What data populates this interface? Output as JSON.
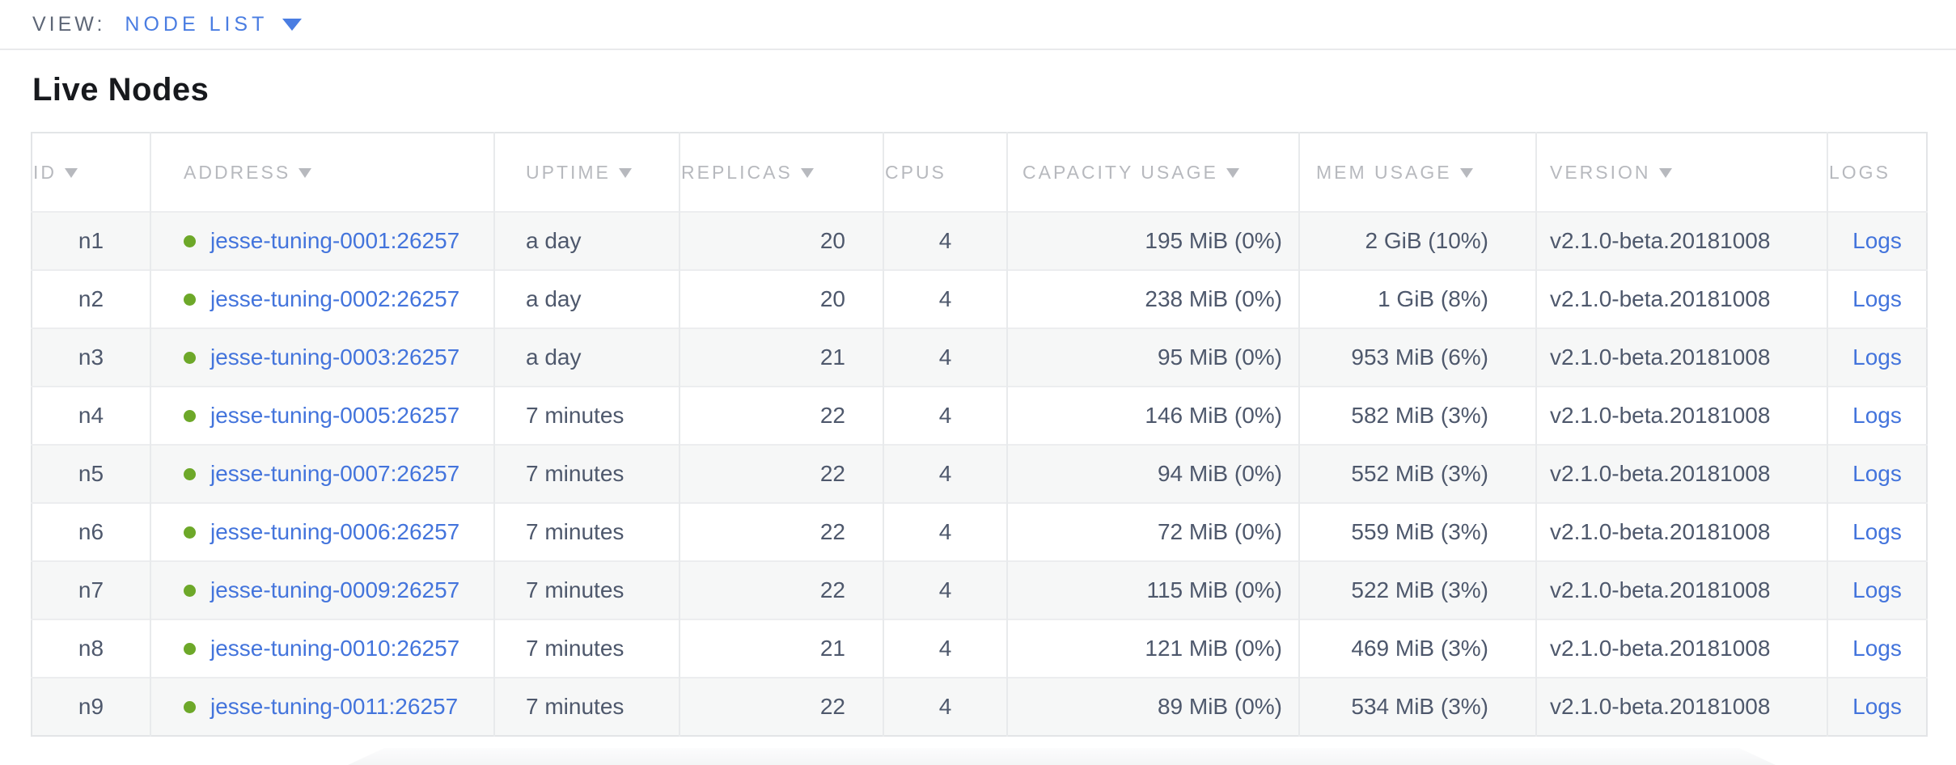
{
  "view_bar": {
    "label": "VIEW:",
    "selected": "NODE LIST"
  },
  "page": {
    "title": "Live Nodes"
  },
  "table": {
    "columns": [
      {
        "label": "ID",
        "sortable": true
      },
      {
        "label": "ADDRESS",
        "sortable": true
      },
      {
        "label": "UPTIME",
        "sortable": true
      },
      {
        "label": "REPLICAS",
        "sortable": true
      },
      {
        "label": "CPUS",
        "sortable": false
      },
      {
        "label": "CAPACITY USAGE",
        "sortable": true
      },
      {
        "label": "MEM USAGE",
        "sortable": true
      },
      {
        "label": "VERSION",
        "sortable": true
      },
      {
        "label": "LOGS",
        "sortable": false
      }
    ],
    "rows": [
      {
        "id": "n1",
        "address": "jesse-tuning-0001:26257",
        "uptime": "a day",
        "replicas": "20",
        "cpus": "4",
        "capacity": "195 MiB (0%)",
        "mem": "2 GiB (10%)",
        "version": "v2.1.0-beta.20181008",
        "logs": "Logs"
      },
      {
        "id": "n2",
        "address": "jesse-tuning-0002:26257",
        "uptime": "a day",
        "replicas": "20",
        "cpus": "4",
        "capacity": "238 MiB (0%)",
        "mem": "1 GiB (8%)",
        "version": "v2.1.0-beta.20181008",
        "logs": "Logs"
      },
      {
        "id": "n3",
        "address": "jesse-tuning-0003:26257",
        "uptime": "a day",
        "replicas": "21",
        "cpus": "4",
        "capacity": "95 MiB (0%)",
        "mem": "953 MiB (6%)",
        "version": "v2.1.0-beta.20181008",
        "logs": "Logs"
      },
      {
        "id": "n4",
        "address": "jesse-tuning-0005:26257",
        "uptime": "7 minutes",
        "replicas": "22",
        "cpus": "4",
        "capacity": "146 MiB (0%)",
        "mem": "582 MiB (3%)",
        "version": "v2.1.0-beta.20181008",
        "logs": "Logs"
      },
      {
        "id": "n5",
        "address": "jesse-tuning-0007:26257",
        "uptime": "7 minutes",
        "replicas": "22",
        "cpus": "4",
        "capacity": "94 MiB (0%)",
        "mem": "552 MiB (3%)",
        "version": "v2.1.0-beta.20181008",
        "logs": "Logs"
      },
      {
        "id": "n6",
        "address": "jesse-tuning-0006:26257",
        "uptime": "7 minutes",
        "replicas": "22",
        "cpus": "4",
        "capacity": "72 MiB (0%)",
        "mem": "559 MiB (3%)",
        "version": "v2.1.0-beta.20181008",
        "logs": "Logs"
      },
      {
        "id": "n7",
        "address": "jesse-tuning-0009:26257",
        "uptime": "7 minutes",
        "replicas": "22",
        "cpus": "4",
        "capacity": "115 MiB (0%)",
        "mem": "522 MiB (3%)",
        "version": "v2.1.0-beta.20181008",
        "logs": "Logs"
      },
      {
        "id": "n8",
        "address": "jesse-tuning-0010:26257",
        "uptime": "7 minutes",
        "replicas": "21",
        "cpus": "4",
        "capacity": "121 MiB (0%)",
        "mem": "469 MiB (3%)",
        "version": "v2.1.0-beta.20181008",
        "logs": "Logs"
      },
      {
        "id": "n9",
        "address": "jesse-tuning-0011:26257",
        "uptime": "7 minutes",
        "replicas": "22",
        "cpus": "4",
        "capacity": "89 MiB (0%)",
        "mem": "534 MiB (3%)",
        "version": "v2.1.0-beta.20181008",
        "logs": "Logs"
      }
    ]
  },
  "icons": {
    "dropdown_caret": "filled-down-triangle",
    "sort_arrow": "filled-down-triangle",
    "node_status": "green-dot"
  },
  "colors": {
    "link_blue": "#4374dc",
    "selector_blue": "#4a7de2",
    "status_green": "#6da829",
    "header_gray": "#b7b9be",
    "body_text": "#4e586c",
    "view_label_gray": "#5d6676",
    "heading_black": "#17191d",
    "row_stripe": "#f6f7f7",
    "border_gray": "#e8eaec"
  }
}
